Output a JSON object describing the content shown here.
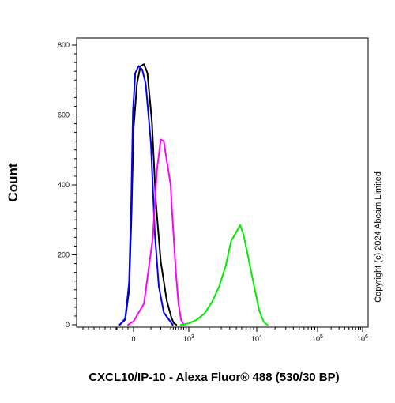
{
  "chart_data": {
    "type": "line",
    "title": "",
    "xlabel": "CXCL10/IP-10 - Alexa Fluor® 488 (530/30 BP)",
    "ylabel": "Count",
    "ylim": [
      0,
      800
    ],
    "xscale": "biexponential",
    "yticks": [
      0,
      200,
      400,
      600,
      800
    ],
    "xticks": [
      {
        "value": 0,
        "label": "0"
      },
      {
        "value": 1000,
        "base": "10",
        "exp": "3"
      },
      {
        "value": 10000,
        "base": "10",
        "exp": "4"
      },
      {
        "value": 100000,
        "base": "10",
        "exp": "5"
      },
      {
        "value": 1000000,
        "base": "10",
        "exp": "6"
      }
    ],
    "grid": false,
    "legend": "none",
    "series": [
      {
        "color": "#000000",
        "x": [
          -250,
          -150,
          -80,
          -40,
          0,
          20,
          40,
          60,
          80,
          110,
          150,
          200,
          260,
          330,
          420,
          520
        ],
        "y": [
          0,
          15,
          100,
          300,
          560,
          690,
          740,
          745,
          720,
          580,
          350,
          180,
          70,
          20,
          5,
          0
        ]
      },
      {
        "color": "#0000ff",
        "x": [
          -250,
          -150,
          -80,
          -40,
          -10,
          10,
          30,
          50,
          70,
          100,
          140,
          180,
          230,
          300,
          380
        ],
        "y": [
          0,
          18,
          120,
          360,
          610,
          720,
          740,
          730,
          690,
          520,
          260,
          110,
          35,
          8,
          0
        ]
      },
      {
        "color": "#ff00ff",
        "x": [
          -100,
          0,
          60,
          120,
          160,
          200,
          230,
          260,
          300,
          350,
          420,
          500,
          600,
          700,
          800
        ],
        "y": [
          0,
          10,
          60,
          250,
          440,
          530,
          525,
          470,
          400,
          330,
          250,
          150,
          60,
          15,
          0
        ]
      },
      {
        "color": "#00ee00",
        "x": [
          700,
          1000,
          1300,
          1700,
          2200,
          2800,
          3500,
          4200,
          5000,
          5700,
          6300,
          7200,
          8200,
          9500,
          11000,
          13000,
          15000
        ],
        "y": [
          0,
          4,
          14,
          32,
          65,
          110,
          170,
          240,
          265,
          285,
          262,
          210,
          155,
          95,
          40,
          8,
          0
        ]
      }
    ]
  },
  "copyright": "Copyright (c) 2024 Abcam Limited"
}
